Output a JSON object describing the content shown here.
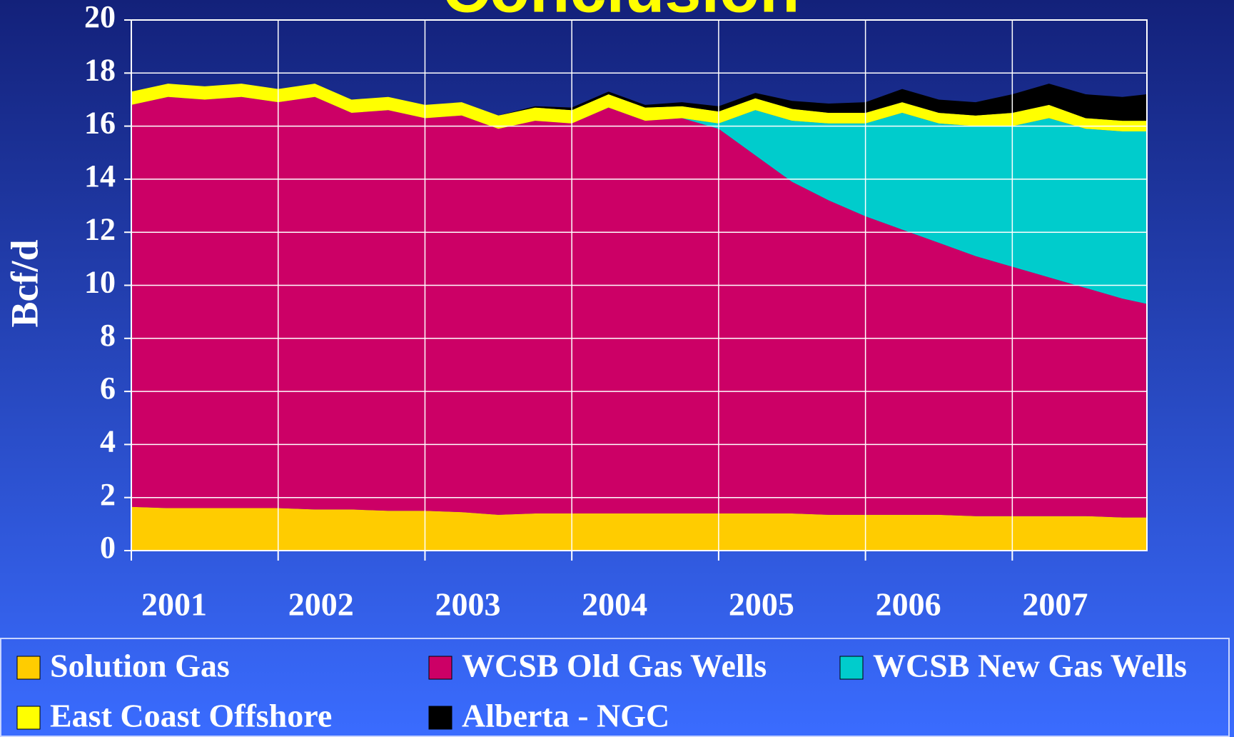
{
  "chart_data": {
    "type": "area",
    "stacked": true,
    "title": "Conclusion",
    "y_label": "Bcf/d",
    "x": [
      2001,
      2001.25,
      2001.5,
      2001.75,
      2002,
      2002.25,
      2002.5,
      2002.75,
      2003,
      2003.25,
      2003.5,
      2003.75,
      2004,
      2004.25,
      2004.5,
      2004.75,
      2005,
      2005.25,
      2005.5,
      2005.75,
      2006,
      2006.25,
      2006.5,
      2006.75,
      2007,
      2007.25,
      2007.5,
      2007.75,
      2007.917
    ],
    "xlim": [
      2001,
      2007.917
    ],
    "xticks": [
      {
        "value": 2001,
        "label": "2001"
      },
      {
        "value": 2002,
        "label": "2002"
      },
      {
        "value": 2003,
        "label": "2003"
      },
      {
        "value": 2004,
        "label": "2004"
      },
      {
        "value": 2005,
        "label": "2005"
      },
      {
        "value": 2006,
        "label": "2006"
      },
      {
        "value": 2007,
        "label": "2007"
      }
    ],
    "ylim": [
      0,
      20
    ],
    "yticks": [
      0,
      2,
      4,
      6,
      8,
      10,
      12,
      14,
      16,
      18,
      20
    ],
    "grid": true,
    "legend": "bottom",
    "series": [
      {
        "name": "Solution Gas",
        "color": "#ffcc00",
        "values": [
          1.65,
          1.6,
          1.6,
          1.6,
          1.6,
          1.55,
          1.55,
          1.5,
          1.5,
          1.45,
          1.35,
          1.4,
          1.4,
          1.4,
          1.4,
          1.4,
          1.4,
          1.4,
          1.4,
          1.35,
          1.35,
          1.35,
          1.35,
          1.3,
          1.3,
          1.3,
          1.3,
          1.25,
          1.25
        ]
      },
      {
        "name": "WCSB Old Gas Wells",
        "color": "#cc0066",
        "values": [
          15.15,
          15.5,
          15.4,
          15.5,
          15.3,
          15.55,
          14.95,
          15.1,
          14.8,
          14.95,
          14.55,
          14.8,
          14.7,
          15.3,
          14.8,
          14.9,
          14.5,
          13.5,
          12.5,
          11.85,
          11.25,
          10.75,
          10.25,
          9.8,
          9.4,
          9.0,
          8.6,
          8.25,
          8.05
        ]
      },
      {
        "name": "WCSB New Gas Wells",
        "color": "#00cccc",
        "values": [
          0,
          0,
          0,
          0,
          0,
          0,
          0,
          0,
          0,
          0,
          0,
          0,
          0,
          0,
          0,
          0,
          0.2,
          1.7,
          2.3,
          2.9,
          3.5,
          4.4,
          4.5,
          4.9,
          5.3,
          6.0,
          6.0,
          6.3,
          6.5
        ]
      },
      {
        "name": "East Coast Offshore",
        "color": "#ffff00",
        "values": [
          0.5,
          0.5,
          0.5,
          0.5,
          0.5,
          0.5,
          0.5,
          0.5,
          0.5,
          0.5,
          0.5,
          0.5,
          0.5,
          0.5,
          0.5,
          0.45,
          0.45,
          0.45,
          0.45,
          0.4,
          0.4,
          0.4,
          0.4,
          0.4,
          0.5,
          0.5,
          0.4,
          0.4,
          0.4
        ]
      },
      {
        "name": "Alberta - NGC",
        "color": "#000000",
        "values": [
          0,
          0,
          0,
          0,
          0,
          0,
          0,
          0,
          0,
          0,
          0,
          0.05,
          0.1,
          0.1,
          0.1,
          0.15,
          0.2,
          0.2,
          0.3,
          0.35,
          0.4,
          0.5,
          0.5,
          0.5,
          0.7,
          0.8,
          0.9,
          0.9,
          1.0
        ]
      }
    ]
  }
}
